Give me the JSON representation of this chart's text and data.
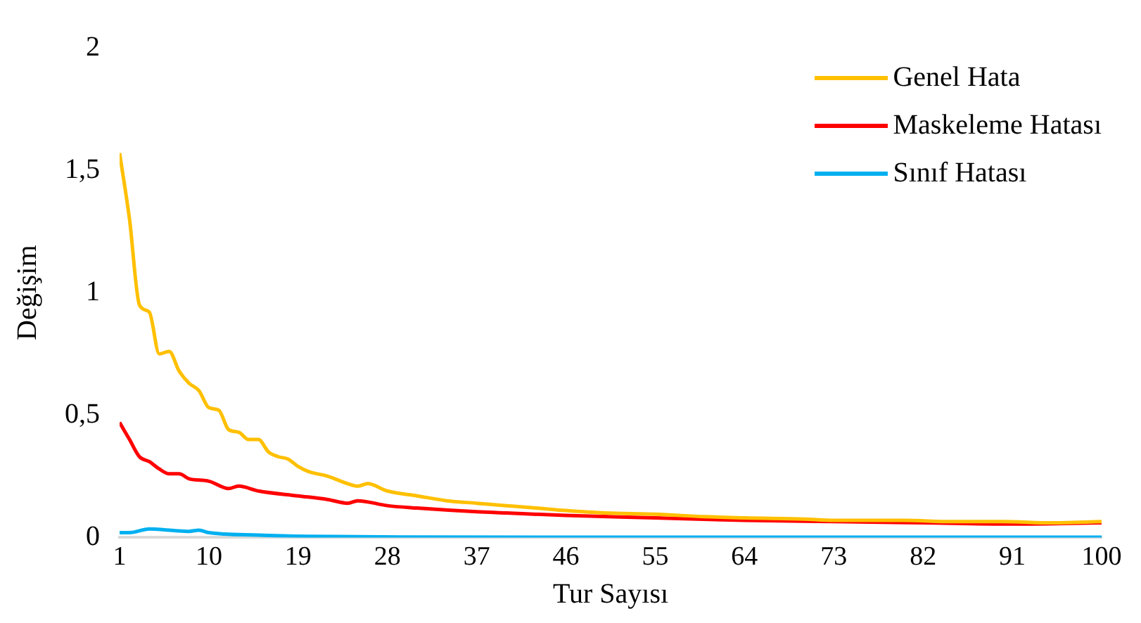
{
  "chart_data": {
    "type": "line",
    "xlabel": "Tur Sayısı",
    "ylabel": "Değişim",
    "xlim": [
      1,
      100
    ],
    "xticks": [
      1,
      10,
      19,
      28,
      37,
      46,
      55,
      64,
      73,
      82,
      91,
      100
    ],
    "ylim": [
      0,
      2
    ],
    "yticks": [
      {
        "value": 0,
        "label": "0"
      },
      {
        "value": 0.5,
        "label": "0,5"
      },
      {
        "value": 1,
        "label": "1"
      },
      {
        "value": 1.5,
        "label": "1,5"
      },
      {
        "value": 2,
        "label": "2"
      }
    ],
    "grid": false,
    "legend": "top right",
    "marker": "none",
    "line_style": "solid",
    "series": [
      {
        "name": "Genel Hata",
        "color": "#ffc000",
        "x": [
          1,
          2,
          3,
          4,
          5,
          6,
          7,
          8,
          9,
          10,
          11,
          12,
          13,
          14,
          15,
          16,
          17,
          18,
          19,
          20,
          22,
          24,
          25,
          26,
          28,
          31,
          34,
          37,
          40,
          43,
          46,
          50,
          55,
          60,
          64,
          70,
          73,
          80,
          85,
          90,
          95,
          100
        ],
        "values": [
          1.57,
          1.3,
          0.95,
          0.92,
          0.75,
          0.76,
          0.68,
          0.63,
          0.6,
          0.53,
          0.52,
          0.44,
          0.43,
          0.4,
          0.4,
          0.35,
          0.33,
          0.32,
          0.29,
          0.27,
          0.25,
          0.22,
          0.21,
          0.22,
          0.19,
          0.17,
          0.15,
          0.14,
          0.13,
          0.12,
          0.11,
          0.1,
          0.095,
          0.085,
          0.08,
          0.075,
          0.07,
          0.07,
          0.065,
          0.065,
          0.06,
          0.065
        ]
      },
      {
        "name": "Maskeleme Hatası",
        "color": "#ff0000",
        "x": [
          1,
          2,
          3,
          4,
          5,
          6,
          7,
          8,
          10,
          12,
          13,
          15,
          19,
          22,
          24,
          25,
          28,
          31,
          37,
          40,
          46,
          55,
          64,
          73,
          82,
          91,
          100
        ],
        "values": [
          0.47,
          0.4,
          0.33,
          0.31,
          0.28,
          0.26,
          0.26,
          0.24,
          0.23,
          0.2,
          0.21,
          0.19,
          0.17,
          0.155,
          0.14,
          0.15,
          0.13,
          0.12,
          0.105,
          0.1,
          0.09,
          0.08,
          0.07,
          0.065,
          0.06,
          0.055,
          0.06
        ]
      },
      {
        "name": "Sınıf Hatası",
        "color": "#00b0f0",
        "x": [
          1,
          2,
          4,
          6,
          8,
          9,
          10,
          15,
          20,
          30,
          50,
          100
        ],
        "values": [
          0.02,
          0.02,
          0.035,
          0.03,
          0.025,
          0.03,
          0.02,
          0.01,
          0.005,
          0.002,
          0.001,
          0.001
        ]
      }
    ]
  }
}
